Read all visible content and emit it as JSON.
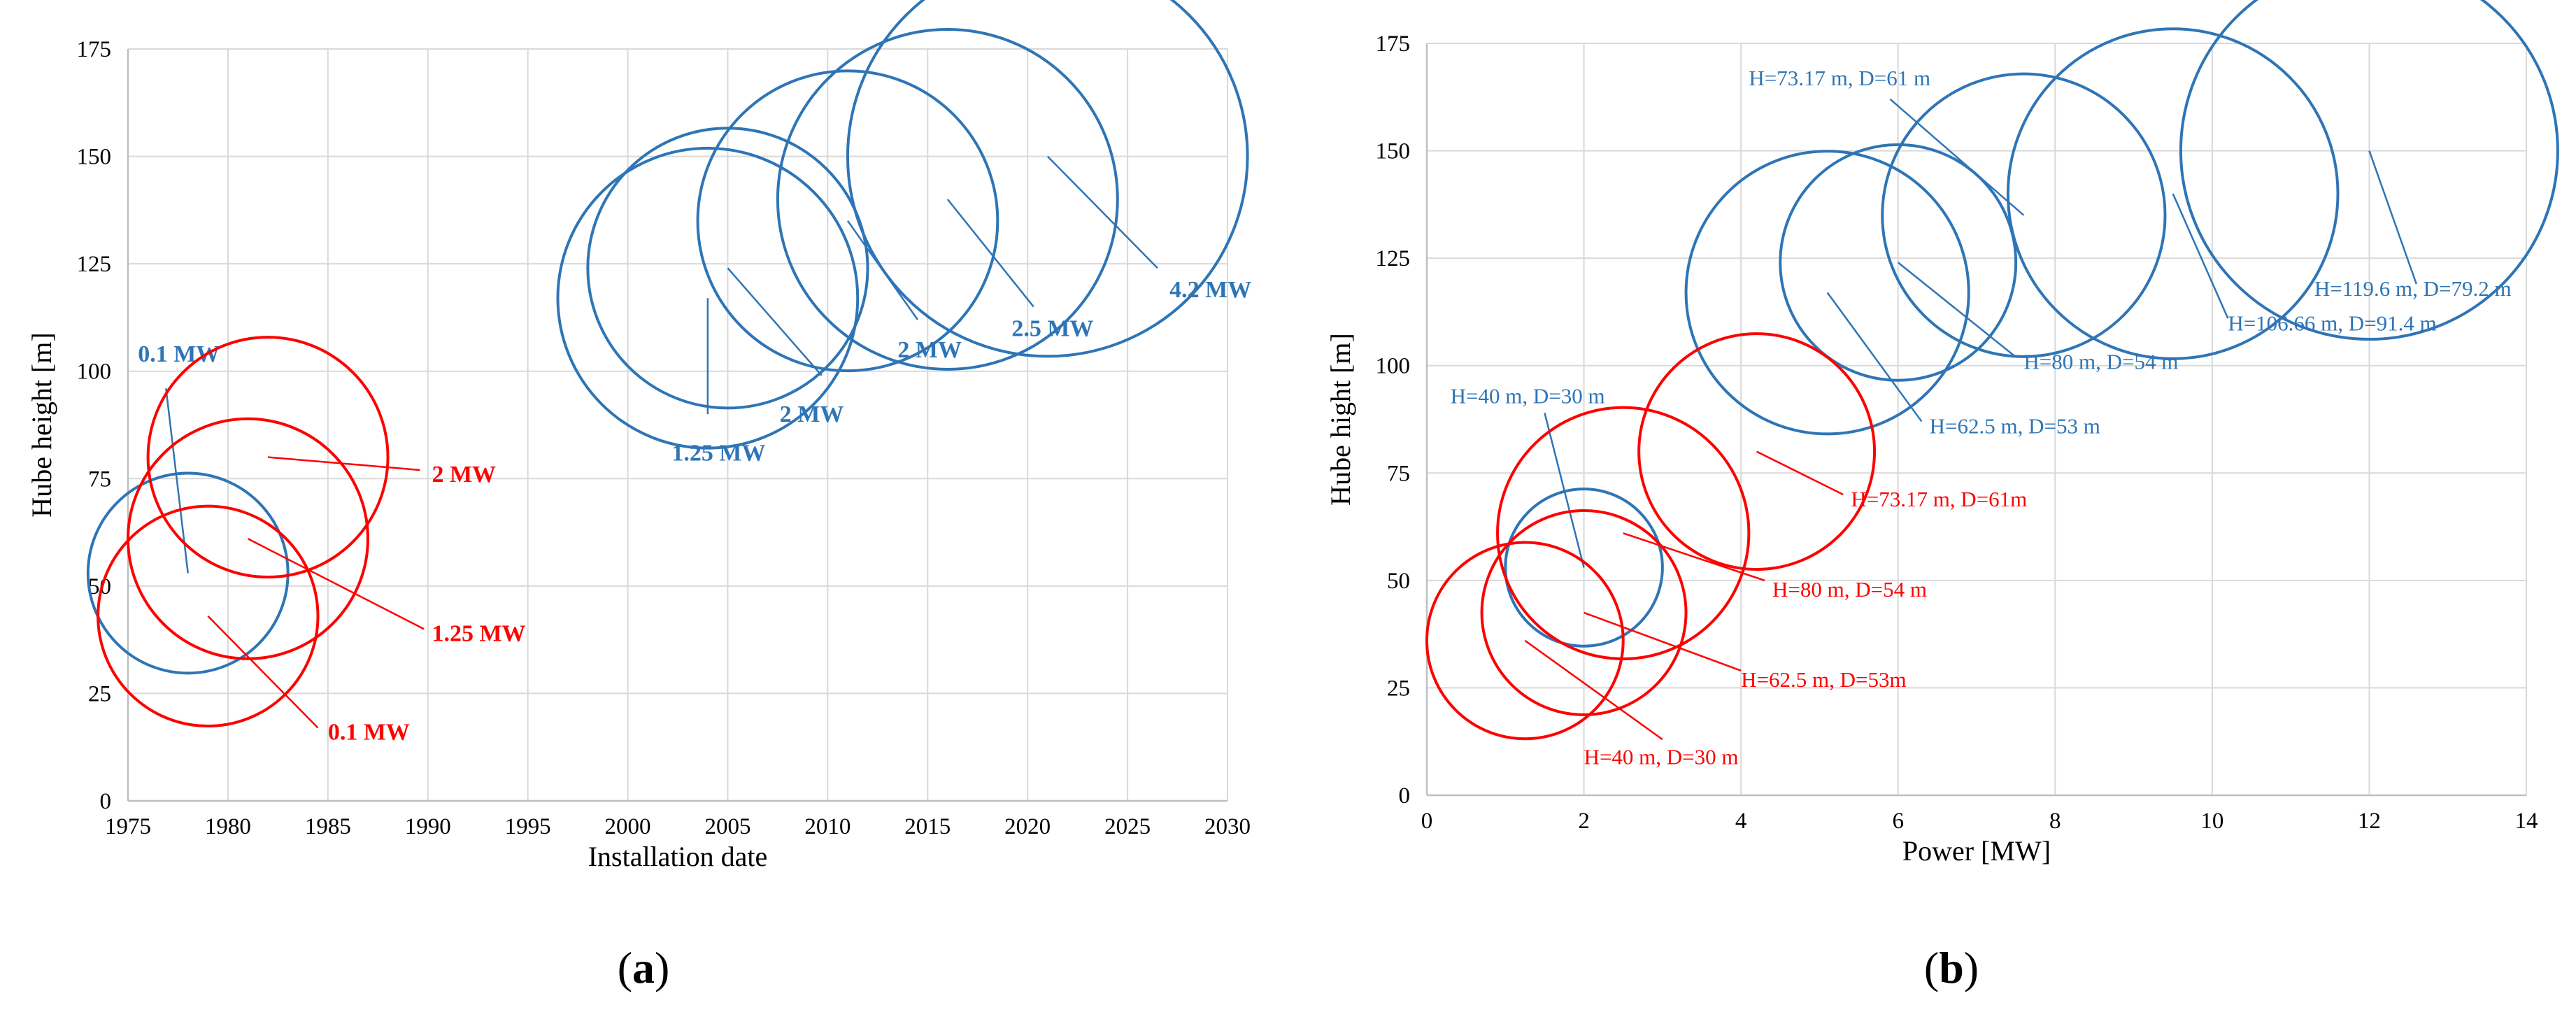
{
  "colors": {
    "blue": "#2E75B6",
    "red": "#FF0000",
    "grid": "#D9D9D9",
    "axis": "#BFBFBF"
  },
  "chart_data": [
    {
      "panel": "a",
      "panel_label": "a",
      "type": "scatter",
      "marker": "bubble",
      "xlabel": "Installation date",
      "ylabel": "Hube height [m]",
      "xlim": [
        1975,
        2030
      ],
      "ylim": [
        0,
        175
      ],
      "xticks": [
        1975,
        1980,
        1985,
        1990,
        1995,
        2000,
        2005,
        2010,
        2015,
        2020,
        2025,
        2030
      ],
      "yticks": [
        0,
        25,
        50,
        75,
        100,
        125,
        150,
        175
      ],
      "grid": true,
      "series": [
        {
          "name": "blue",
          "color": "#2E75B6",
          "points": [
            {
              "x": 1978,
              "y": 53,
              "r": 5,
              "label": "0.1 MW",
              "label_x": 1975.5,
              "label_y": 104,
              "leader_to_x": 1976.9,
              "leader_to_y": 96
            },
            {
              "x": 2004,
              "y": 117,
              "r": 7.5,
              "label": "1.25 MW",
              "label_x": 2002.2,
              "label_y": 81,
              "leader_to_x": 2004,
              "leader_to_y": 90
            },
            {
              "x": 2005,
              "y": 124,
              "r": 7,
              "label": "2 MW",
              "label_x": 2007.6,
              "label_y": 90,
              "leader_to_x": 2009.7,
              "leader_to_y": 99
            },
            {
              "x": 2011,
              "y": 135,
              "r": 7.5,
              "label": "2 MW",
              "label_x": 2013.5,
              "label_y": 105,
              "leader_to_x": 2014.5,
              "leader_to_y": 112
            },
            {
              "x": 2016,
              "y": 140,
              "r": 8.5,
              "label": "2.5 MW",
              "label_x": 2019.2,
              "label_y": 110,
              "leader_to_x": 2020.3,
              "leader_to_y": 115
            },
            {
              "x": 2021,
              "y": 150,
              "r": 10,
              "label": "4.2 MW",
              "label_x": 2027.1,
              "label_y": 119,
              "leader_to_x": 2026.5,
              "leader_to_y": 124
            }
          ]
        },
        {
          "name": "red",
          "color": "#FF0000",
          "points": [
            {
              "x": 1979,
              "y": 43,
              "r": 5.5,
              "label": "0.1 MW",
              "label_x": 1985,
              "label_y": 16,
              "leader_to_x": 1984.5,
              "leader_to_y": 17
            },
            {
              "x": 1981,
              "y": 61,
              "r": 6,
              "label": "1.25 MW",
              "label_x": 1990.2,
              "label_y": 39,
              "leader_to_x": 1989.8,
              "leader_to_y": 40
            },
            {
              "x": 1982,
              "y": 80,
              "r": 6,
              "label": "2 MW",
              "label_x": 1990.2,
              "label_y": 76,
              "leader_to_x": 1989.6,
              "leader_to_y": 77
            }
          ]
        }
      ]
    },
    {
      "panel": "b",
      "panel_label": "b",
      "type": "scatter",
      "marker": "bubble",
      "xlabel": "Power [MW]",
      "ylabel": "Hube hight [m]",
      "xlim": [
        0,
        14
      ],
      "ylim": [
        0,
        175
      ],
      "xticks": [
        0,
        2,
        4,
        6,
        8,
        10,
        12,
        14
      ],
      "yticks": [
        0,
        25,
        50,
        75,
        100,
        125,
        150,
        175
      ],
      "grid": true,
      "series": [
        {
          "name": "blue",
          "color": "#2E75B6",
          "points": [
            {
              "x": 2,
              "y": 53,
              "r": 1,
              "label": "H=40 m, D=30 m",
              "label_x": 0.3,
              "label_y": 93,
              "leader_to_x": 1.5,
              "leader_to_y": 89
            },
            {
              "x": 5.1,
              "y": 117,
              "r": 1.8,
              "label": "H=62.5 m, D=53 m",
              "label_x": 6.4,
              "label_y": 86,
              "leader_to_x": 6.3,
              "leader_to_y": 87
            },
            {
              "x": 6,
              "y": 124,
              "r": 1.5,
              "label": "H=80 m, D=54 m",
              "label_x": 7.6,
              "label_y": 101,
              "leader_to_x": 7.5,
              "leader_to_y": 102
            },
            {
              "x": 7.6,
              "y": 135,
              "r": 1.8,
              "label": "H=73.17 m, D=61 m",
              "label_x": 4.1,
              "label_y": 167,
              "leader_to_x": 5.9,
              "leader_to_y": 162
            },
            {
              "x": 9.5,
              "y": 140,
              "r": 2.1,
              "label": "H=106.66 m, D=91.4 m",
              "label_x": 10.2,
              "label_y": 110,
              "leader_to_x": 10.2,
              "leader_to_y": 111
            },
            {
              "x": 12,
              "y": 150,
              "r": 2.4,
              "label": "H=119.6 m, D=79.2 m",
              "label_x": 11.3,
              "label_y": 118,
              "leader_to_x": 12.6,
              "leader_to_y": 119
            }
          ]
        },
        {
          "name": "red",
          "color": "#FF0000",
          "points": [
            {
              "x": 1.25,
              "y": 36,
              "r": 1.25,
              "label": "H=40 m, D=30 m",
              "label_x": 2.0,
              "label_y": 9,
              "leader_to_x": 3.0,
              "leader_to_y": 13
            },
            {
              "x": 2,
              "y": 42.5,
              "r": 1.3,
              "label": "H=62.5 m, D=53m",
              "label_x": 4.0,
              "label_y": 27,
              "leader_to_x": 4.0,
              "leader_to_y": 29
            },
            {
              "x": 2.5,
              "y": 61,
              "r": 1.6,
              "label": "H=80 m, D=54 m",
              "label_x": 4.4,
              "label_y": 48,
              "leader_to_x": 4.3,
              "leader_to_y": 50
            },
            {
              "x": 4.2,
              "y": 80,
              "r": 1.5,
              "label": "H=73.17 m, D=61m",
              "label_x": 5.4,
              "label_y": 69,
              "leader_to_x": 5.3,
              "leader_to_y": 70
            }
          ]
        }
      ]
    }
  ]
}
